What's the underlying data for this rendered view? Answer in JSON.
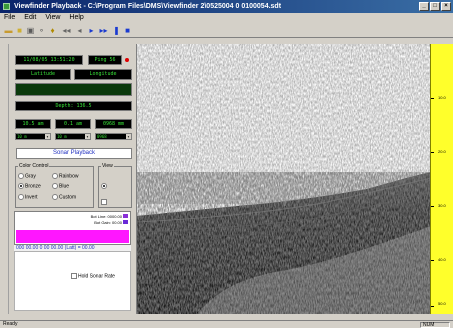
{
  "window": {
    "title": "Viewfinder Playback - C:\\Program Files\\DMS\\Viewfinder 2\\0525004 0 0100054.sdt",
    "min_label": "_",
    "max_label": "□",
    "close_label": "×"
  },
  "menu": [
    "File",
    "Edit",
    "View",
    "Help"
  ],
  "toolbar": {
    "icons": [
      "open-folder-icon",
      "open-file-icon",
      "save-icon",
      "magnify-icon",
      "marker-icon",
      "rewind-icon",
      "back-icon",
      "play-icon",
      "fast-forward-icon",
      "pause-icon",
      "stop-icon"
    ]
  },
  "panel": {
    "datetime": "11/08/05 13:51:20",
    "ping": "Ping 56",
    "latitude": "Latitude",
    "longitude": "Longitude",
    "position_strip": "",
    "depth": "Depth: 136.5",
    "range_a": "10.5 am",
    "range_b": "0.1 am",
    "range_c": "0968 mm",
    "dd_a": "10 m",
    "dd_b": "10 m",
    "dd_c": "0968",
    "playback_button": "Sonar Playback",
    "color_group_label": "Color Control",
    "color_options": [
      "Gray",
      "Rainbow",
      "Bronze",
      "Blue",
      "Invert",
      "Custom"
    ],
    "color_selected": "Bronze",
    "view_group_label": "View",
    "view_option": "",
    "info_line1": "Bot Line: 0000.00",
    "info_line2": "Bot Gain: 00.00",
    "coord_text": "000 00.00 0 00 00.00 (Latt) = 00.00",
    "checkbox_label": "Hold Sonar Rate"
  },
  "ruler": {
    "labels": [
      "10.0",
      "20.0",
      "30.0",
      "40.0",
      "50.0"
    ]
  },
  "status": {
    "left": "Ready",
    "right": "NUM"
  },
  "colors": {
    "titlebar": "#0a246a",
    "lcd_text": "#37e037",
    "ruler": "#ffff2b",
    "color_bar": "#ff16ff",
    "link_blue": "#2030c0"
  }
}
